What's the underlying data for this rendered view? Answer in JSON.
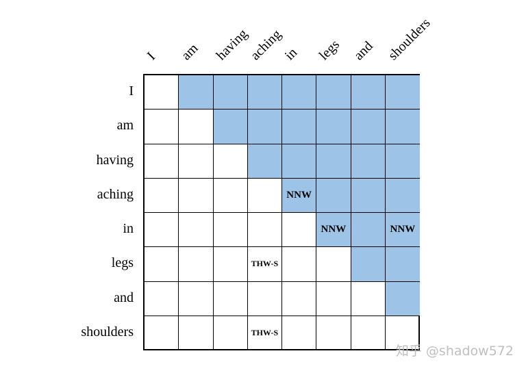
{
  "tokens": [
    "I",
    "am",
    "having",
    "aching",
    "in",
    "legs",
    "and",
    "shoulders"
  ],
  "colors": {
    "upper_triangle": "#9dc3e6",
    "lower_triangle": "#ffffff",
    "border": "#000000"
  },
  "cell_tags": [
    {
      "row": 3,
      "col": 4,
      "text": "NNW"
    },
    {
      "row": 4,
      "col": 5,
      "text": "NNW"
    },
    {
      "row": 4,
      "col": 7,
      "text": "NNW"
    },
    {
      "row": 5,
      "col": 3,
      "text": "THW-S"
    },
    {
      "row": 7,
      "col": 3,
      "text": "THW-S"
    }
  ],
  "watermark": "知乎 @shadow572"
}
